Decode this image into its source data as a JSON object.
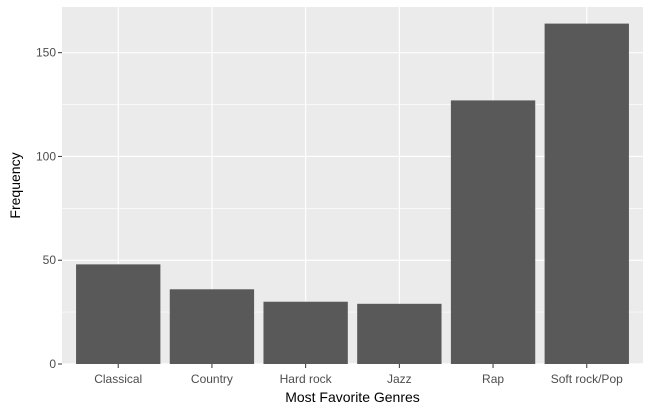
{
  "chart_data": {
    "type": "bar",
    "title": "",
    "xlabel": "Most Favorite Genres",
    "ylabel": "Frequency",
    "categories": [
      "Classical",
      "Country",
      "Hard rock",
      "Jazz",
      "Rap",
      "Soft rock/Pop"
    ],
    "values": [
      48,
      36,
      30,
      29,
      127,
      164
    ],
    "ylim": [
      0,
      172
    ],
    "yticks": [
      0,
      50,
      100,
      150
    ],
    "ytick_labels": [
      "0",
      "50",
      "100",
      "150"
    ],
    "grid": true,
    "legend": "none",
    "colors": {
      "panel": "#ebebeb",
      "grid_major": "#ffffff",
      "bar": "#595959",
      "tick_text": "#4d4d4d",
      "tick_mark": "#333333"
    }
  }
}
